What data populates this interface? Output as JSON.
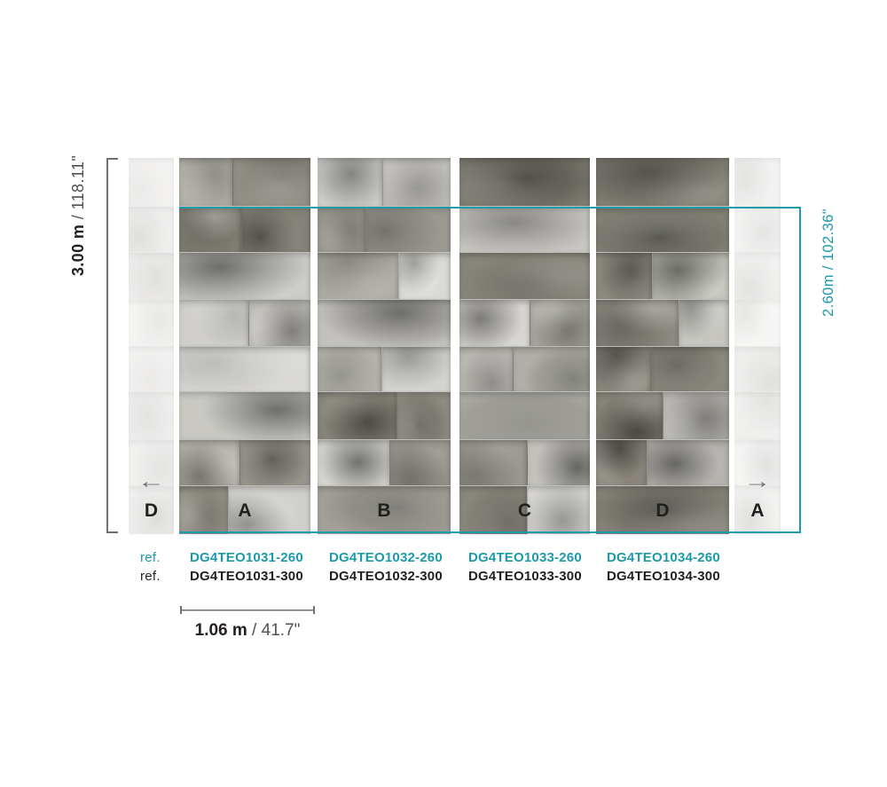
{
  "colors": {
    "teal": "#1b9aaa",
    "ink": "#231f20",
    "bracket_gray": "#6f7072",
    "dim_gray": "#4f5052"
  },
  "dimensions": {
    "total_height": {
      "metric": "3.00 m",
      "sep": " / ",
      "imperial": "118.11\""
    },
    "roll_height": {
      "metric": "2.60m",
      "sep": " / ",
      "imperial": "102.36\""
    },
    "panel_width": {
      "metric": "1.06 m",
      "sep": " / ",
      "imperial": "41.7\""
    }
  },
  "panels": [
    {
      "label": "D",
      "faded": true
    },
    {
      "label": "A",
      "faded": false
    },
    {
      "label": "B",
      "faded": false
    },
    {
      "label": "C",
      "faded": false
    },
    {
      "label": "D",
      "faded": false
    },
    {
      "label": "A",
      "faded": true
    }
  ],
  "arrows": {
    "left": "←",
    "right": "→"
  },
  "refs": {
    "row_260": {
      "label": "ref.",
      "codes": [
        "DG4TEO1031-260",
        "DG4TEO1032-260",
        "DG4TEO1033-260",
        "DG4TEO1034-260"
      ]
    },
    "row_300": {
      "label": "ref.",
      "codes": [
        "DG4TEO1031-300",
        "DG4TEO1032-300",
        "DG4TEO1033-300",
        "DG4TEO1034-300"
      ]
    }
  }
}
